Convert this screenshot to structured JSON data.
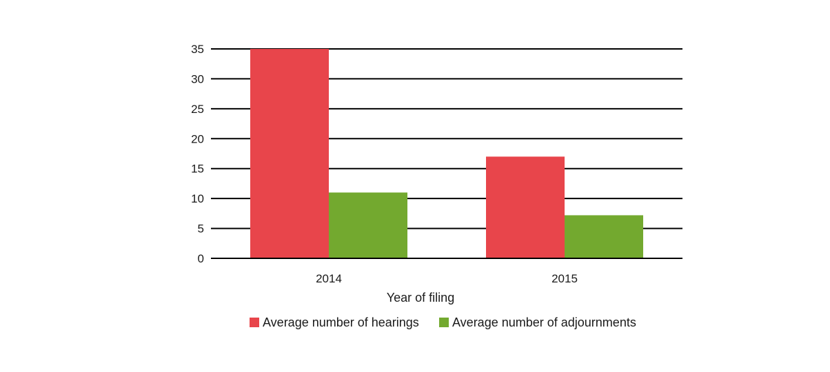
{
  "chart_data": {
    "type": "bar",
    "categories": [
      "2014",
      "2015"
    ],
    "series": [
      {
        "name": "Average number of hearings",
        "values": [
          35,
          17
        ],
        "color": "#e8454b"
      },
      {
        "name": "Average number of adjournments",
        "values": [
          11,
          7.2
        ],
        "color": "#73a92f"
      }
    ],
    "xlabel": "Year of filing",
    "ylabel": "",
    "ylim": [
      0,
      35
    ],
    "yticks": [
      0,
      5,
      10,
      15,
      20,
      25,
      30,
      35
    ],
    "grid": true,
    "legend": "bottom"
  }
}
